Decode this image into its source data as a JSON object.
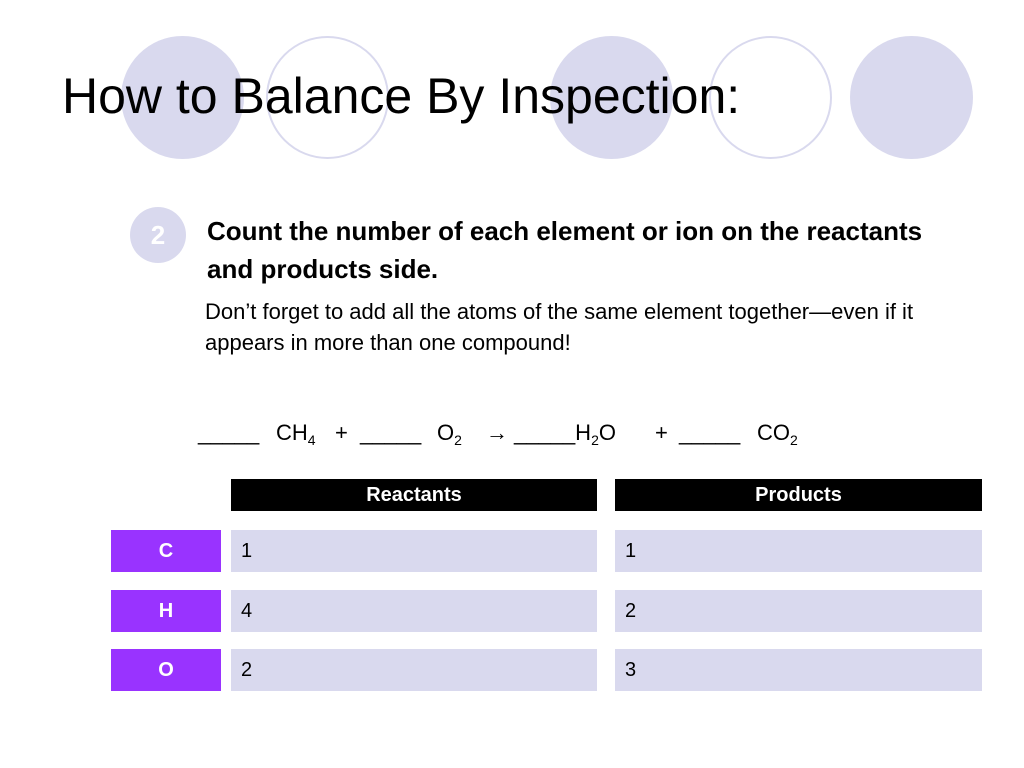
{
  "slide": {
    "title": "How to Balance By Inspection:",
    "step_number": "2",
    "step_text": "Count the number of each element or ion on the reactants and products side.",
    "note": "Don’t forget to add all the atoms of the same element together—even if it appears in more than one compound!",
    "equation": {
      "blank": "_____",
      "ch4_main": "CH",
      "ch4_sub": "4",
      "plus": "+",
      "o2_main": "O",
      "o2_sub": "2",
      "arrow": "→",
      "h2o_blank": "_____H",
      "h2o_sub": "2",
      "h2o_end": "O",
      "co2_main": "CO",
      "co2_sub": "2"
    },
    "accent_color": "#9933ff",
    "circle_color": "#d9d9ee"
  },
  "table": {
    "headers": {
      "reactants": "Reactants",
      "products": "Products"
    },
    "rows": [
      {
        "element": "C",
        "reactants": "1",
        "products": "1"
      },
      {
        "element": "H",
        "reactants": "4",
        "products": "2"
      },
      {
        "element": "O",
        "reactants": "2",
        "products": "3"
      }
    ]
  }
}
